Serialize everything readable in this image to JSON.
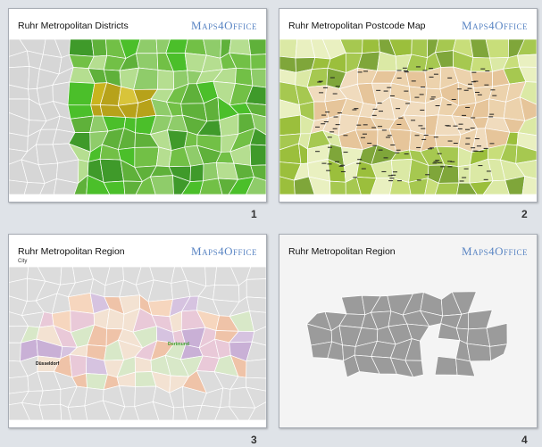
{
  "slides": [
    {
      "number": "1",
      "title": "Ruhr Metropolitan Districts",
      "logo": "Maps4Office"
    },
    {
      "number": "2",
      "title": "Ruhr Metropolitan Postcode Map",
      "logo": "Maps4Office"
    },
    {
      "number": "3",
      "title": "Ruhr Metropolitan Region",
      "subtitle": "City",
      "logo": "Maps4Office",
      "labels": [
        "Dortmund",
        "Düsseldorf"
      ]
    },
    {
      "number": "4",
      "title": "Ruhr Metropolitan Region",
      "logo": "Maps4Office"
    }
  ]
}
